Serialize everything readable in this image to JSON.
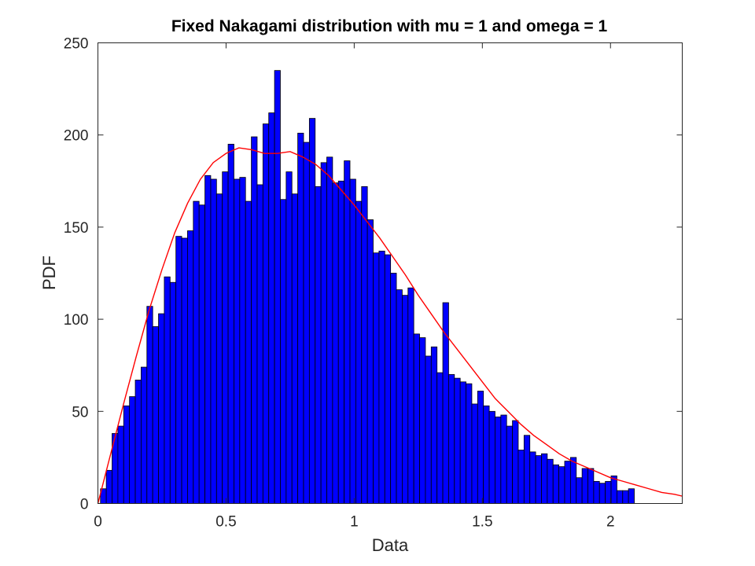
{
  "chart_data": {
    "type": "bar",
    "title": "Fixed Nakagami distribution with mu = 1 and omega = 1",
    "xlabel": "Data",
    "ylabel": "PDF",
    "xlim": [
      0,
      2.28
    ],
    "ylim": [
      0,
      250
    ],
    "xticks": [
      0,
      0.5,
      1,
      1.5,
      2
    ],
    "xtick_labels": [
      "0",
      "0.5",
      "1",
      "1.5",
      "2"
    ],
    "yticks": [
      0,
      50,
      100,
      150,
      200,
      250
    ],
    "ytick_labels": [
      "0",
      "50",
      "100",
      "150",
      "200",
      "250"
    ],
    "grid": false,
    "bin_start": 0.01,
    "bin_width": 0.02264,
    "bin_counts": [
      8,
      18,
      38,
      42,
      53,
      58,
      67,
      74,
      107,
      96,
      103,
      123,
      120,
      145,
      144,
      148,
      164,
      162,
      178,
      176,
      168,
      180,
      195,
      176,
      177,
      164,
      199,
      173,
      206,
      212,
      235,
      165,
      180,
      168,
      201,
      196,
      209,
      172,
      185,
      188,
      174,
      175,
      186,
      176,
      164,
      172,
      154,
      136,
      137,
      135,
      125,
      116,
      113,
      117,
      92,
      90,
      80,
      85,
      71,
      109,
      70,
      68,
      66,
      65,
      54,
      61,
      53,
      50,
      47,
      48,
      42,
      45,
      29,
      37,
      28,
      26,
      27,
      24,
      21,
      20,
      23,
      25,
      14,
      19,
      19,
      12,
      11,
      12,
      15,
      7,
      7,
      8
    ],
    "bar_color": "#0000ff",
    "bar_edge_color": "#000000",
    "series": [
      {
        "type": "line",
        "color": "#ff0000",
        "x": [
          0.0,
          0.05,
          0.1,
          0.15,
          0.2,
          0.25,
          0.3,
          0.35,
          0.4,
          0.45,
          0.5,
          0.55,
          0.6,
          0.65,
          0.7,
          0.75,
          0.8,
          0.85,
          0.9,
          0.95,
          1.0,
          1.05,
          1.1,
          1.15,
          1.2,
          1.25,
          1.3,
          1.35,
          1.4,
          1.45,
          1.5,
          1.55,
          1.6,
          1.65,
          1.7,
          1.75,
          1.8,
          1.85,
          1.9,
          1.95,
          2.0,
          2.05,
          2.1,
          2.15,
          2.2,
          2.25,
          2.28
        ],
        "y": [
          0,
          27,
          54,
          80,
          105,
          127,
          147,
          163,
          176,
          185,
          190,
          193,
          192,
          190,
          190,
          191,
          188,
          184,
          178,
          170,
          162,
          153,
          144,
          134,
          124,
          113,
          103,
          93,
          84,
          75,
          66,
          57,
          50,
          43,
          37,
          32,
          27,
          23,
          20,
          17,
          14,
          12,
          10,
          8,
          6,
          5,
          4
        ]
      }
    ]
  }
}
